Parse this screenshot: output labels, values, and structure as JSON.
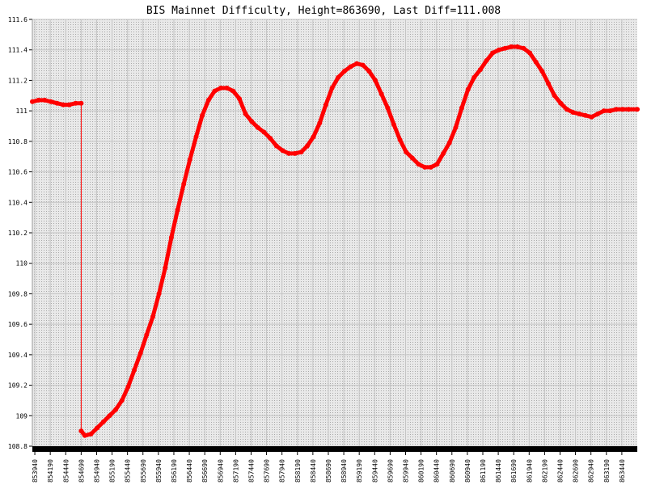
{
  "chart_data": {
    "type": "line",
    "title": "BIS Mainnet Difficulty, Height=863690, Last Diff=111.008",
    "xlabel": "",
    "ylabel": "",
    "ylim": [
      108.8,
      111.6
    ],
    "xlim": [
      853900,
      863690
    ],
    "y_ticks": [
      "108.8",
      "109",
      "109.2",
      "109.4",
      "109.6",
      "109.8",
      "110",
      "110.2",
      "110.4",
      "110.6",
      "110.8",
      "111",
      "111.2",
      "111.4",
      "111.6"
    ],
    "x_ticks": [
      "853940",
      "854190",
      "854440",
      "854690",
      "854940",
      "855190",
      "855440",
      "855690",
      "855940",
      "856190",
      "856440",
      "856690",
      "856940",
      "857190",
      "857440",
      "857690",
      "857940",
      "858190",
      "858440",
      "858690",
      "858940",
      "859190",
      "859440",
      "859690",
      "859940",
      "860190",
      "860440",
      "860690",
      "860940",
      "861190",
      "861440",
      "861690",
      "861940",
      "862190",
      "862440",
      "862690",
      "862940",
      "863190",
      "863440"
    ],
    "grid": true,
    "series": [
      {
        "color": "#ff0000",
        "x": [
          853900,
          854000,
          854100,
          854200,
          854300,
          854400,
          854500,
          854600,
          854690,
          854690,
          854750,
          854850,
          854950,
          855050,
          855150,
          855250,
          855350,
          855450,
          855550,
          855650,
          855750,
          855850,
          855950,
          856050,
          856150,
          856250,
          856350,
          856450,
          856550,
          856650,
          856750,
          856850,
          856950,
          857050,
          857150,
          857250,
          857350,
          857450,
          857550,
          857650,
          857750,
          857850,
          857950,
          858050,
          858150,
          858250,
          858350,
          858450,
          858550,
          858650,
          858750,
          858850,
          858950,
          859050,
          859150,
          859250,
          859350,
          859450,
          859550,
          859650,
          859750,
          859850,
          859950,
          860050,
          860150,
          860250,
          860350,
          860450,
          860550,
          860650,
          860750,
          860850,
          860950,
          861050,
          861150,
          861250,
          861350,
          861450,
          861550,
          861650,
          861750,
          861850,
          861950,
          862050,
          862150,
          862250,
          862350,
          862450,
          862550,
          862650,
          862750,
          862850,
          862950,
          863050,
          863150,
          863250,
          863350,
          863450,
          863550,
          863690
        ],
        "y": [
          111.06,
          111.07,
          111.07,
          111.06,
          111.05,
          111.04,
          111.04,
          111.05,
          111.05,
          108.9,
          108.87,
          108.88,
          108.92,
          108.96,
          109.0,
          109.04,
          109.1,
          109.19,
          109.3,
          109.41,
          109.53,
          109.65,
          109.8,
          109.97,
          110.17,
          110.35,
          110.52,
          110.68,
          110.83,
          110.97,
          111.07,
          111.13,
          111.15,
          111.15,
          111.13,
          111.08,
          110.98,
          110.93,
          110.89,
          110.86,
          110.82,
          110.77,
          110.74,
          110.72,
          110.72,
          110.73,
          110.77,
          110.83,
          110.92,
          111.04,
          111.15,
          111.22,
          111.26,
          111.29,
          111.31,
          111.3,
          111.26,
          111.2,
          111.11,
          111.02,
          110.91,
          110.81,
          110.73,
          110.69,
          110.65,
          110.63,
          110.63,
          110.65,
          110.72,
          110.79,
          110.89,
          111.02,
          111.14,
          111.22,
          111.27,
          111.33,
          111.38,
          111.4,
          111.41,
          111.42,
          111.42,
          111.41,
          111.38,
          111.32,
          111.26,
          111.18,
          111.1,
          111.05,
          111.01,
          110.99,
          110.98,
          110.97,
          110.96,
          110.98,
          111.0,
          111.0,
          111.01,
          111.01,
          111.01,
          111.01
        ]
      }
    ]
  }
}
